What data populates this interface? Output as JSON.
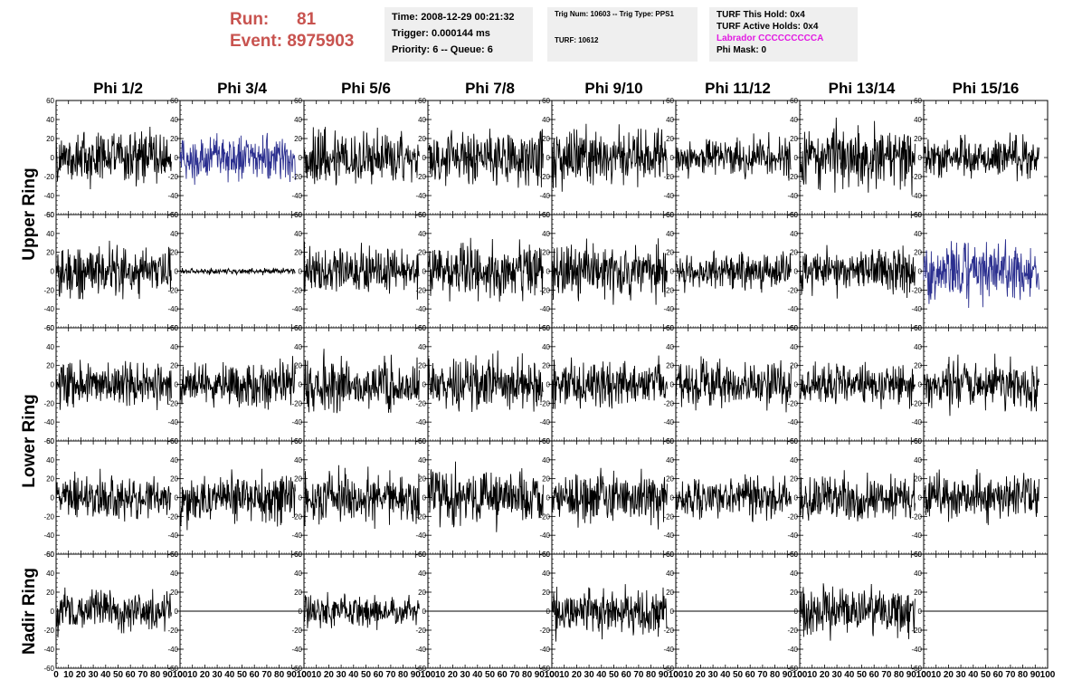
{
  "header": {
    "run_label": "Run:",
    "run_value": "81",
    "event_label": "Event:",
    "event_value": "8975903",
    "time": "Time: 2008-12-29 00:21:32",
    "trigger": "Trigger: 0.000144 ms",
    "priority": "Priority: 6 -- Queue: 6",
    "trig_num": "Trig Num: 10603 -- Trig Type: PPS1",
    "turf": "TURF: 10612",
    "turf_this_hold": "TURF This Hold: 0x4",
    "turf_active_holds": "TURF Active Holds: 0x4",
    "labrador": "Labrador CCCCCCCCCA",
    "phi_mask": "Phi Mask: 0"
  },
  "colors": {
    "header_red": "#c8534f",
    "labrador_magenta": "#e21ae2",
    "trace_black": "#000000",
    "trace_blue": "#2b2f8f",
    "box_bg": "#efefef"
  },
  "chart_data": {
    "type": "line",
    "columns": [
      "Phi 1/2",
      "Phi 3/4",
      "Phi 5/6",
      "Phi 7/8",
      "Phi 9/10",
      "Phi 11/12",
      "Phi 13/14",
      "Phi 15/16"
    ],
    "rows": [
      "Upper Ring",
      "Upper Ring",
      "Lower Ring",
      "Lower Ring",
      "Nadir Ring"
    ],
    "ring_labels": [
      "Upper Ring",
      "Lower Ring",
      "Nadir Ring"
    ],
    "xlim": [
      0,
      100
    ],
    "ylim": [
      -60,
      60
    ],
    "yticks": [
      -60,
      -40,
      -20,
      0,
      20,
      40,
      60
    ],
    "xticks": [
      0,
      10,
      20,
      30,
      40,
      50,
      60,
      70,
      80,
      90,
      100
    ],
    "x_tick_labels": [
      "0",
      "10",
      "20",
      "30",
      "40",
      "50",
      "60",
      "70",
      "80",
      "90",
      "100"
    ],
    "samples_per_trace": 260,
    "trace_x_end": 93,
    "panels_amplitude": [
      [
        17,
        14,
        18,
        18,
        18,
        12,
        20,
        12
      ],
      [
        16,
        2,
        15,
        17,
        17,
        12,
        14,
        18
      ],
      [
        15,
        14,
        16,
        16,
        15,
        14,
        14,
        15
      ],
      [
        14,
        16,
        17,
        18,
        16,
        13,
        16,
        14
      ],
      [
        13,
        0,
        10,
        0,
        15,
        0,
        15,
        0
      ]
    ],
    "panels_color": [
      [
        "black",
        "blue",
        "black",
        "black",
        "black",
        "black",
        "black",
        "black"
      ],
      [
        "black",
        "black",
        "black",
        "black",
        "black",
        "black",
        "black",
        "blue"
      ],
      [
        "black",
        "black",
        "black",
        "black",
        "black",
        "black",
        "black",
        "black"
      ],
      [
        "black",
        "black",
        "black",
        "black",
        "black",
        "black",
        "black",
        "black"
      ],
      [
        "black",
        "black",
        "black",
        "black",
        "black",
        "black",
        "black",
        "black"
      ]
    ],
    "grid": false,
    "legend": "none"
  }
}
